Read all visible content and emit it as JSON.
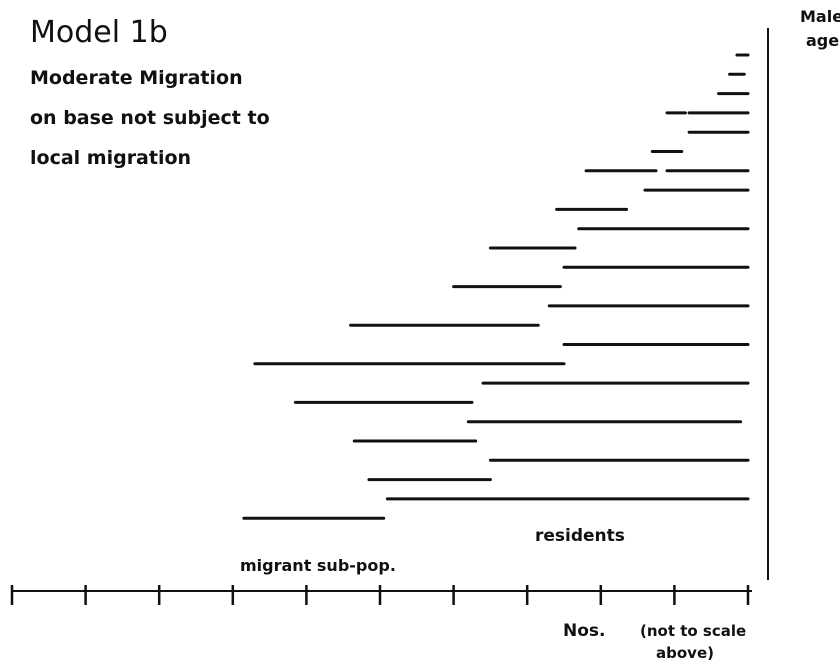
{
  "figure": {
    "title": "Model 1b",
    "subtitle_lines": [
      "Moderate Migration",
      "on base not subject to",
      "local migration"
    ],
    "y_label_lines": [
      "Males",
      "age"
    ],
    "x_label": "Nos.",
    "x_note_lines": [
      "(not to scale",
      "above)"
    ],
    "residents_label": "residents",
    "migrant_label": "migrant sub-pop."
  },
  "chart_data": {
    "type": "bar",
    "title": "Model 1b",
    "subtitle": "Moderate Migration on base not subject to local migration",
    "xlabel": "Nos.",
    "x_note": "(not to scale above)",
    "ylabel": "Males age",
    "x_ticks_count": 11,
    "bar_segments": [
      {
        "row": 1,
        "start": 9.85,
        "end": 10.0
      },
      {
        "row": 2,
        "start": 9.75,
        "end": 9.95
      },
      {
        "row": 3,
        "start": 9.6,
        "end": 10.0
      },
      {
        "row": 4,
        "start": 8.9,
        "end": 9.15
      },
      {
        "row": 4,
        "start": 9.2,
        "end": 10.0
      },
      {
        "row": 5,
        "start": 9.2,
        "end": 10.0
      },
      {
        "row": 6,
        "start": 8.7,
        "end": 9.1
      },
      {
        "row": 7,
        "start": 8.9,
        "end": 10.0
      },
      {
        "row": 7,
        "start": 7.8,
        "end": 8.75
      },
      {
        "row": 8,
        "start": 8.6,
        "end": 10.0
      },
      {
        "row": 9,
        "start": 7.4,
        "end": 8.35
      },
      {
        "row": 10,
        "start": 7.7,
        "end": 10.0
      },
      {
        "row": 11,
        "start": 6.5,
        "end": 7.65
      },
      {
        "row": 12,
        "start": 7.5,
        "end": 10.0
      },
      {
        "row": 13,
        "start": 6.0,
        "end": 7.45
      },
      {
        "row": 14,
        "start": 7.3,
        "end": 10.0
      },
      {
        "row": 15,
        "start": 4.6,
        "end": 7.15
      },
      {
        "row": 16,
        "start": 7.5,
        "end": 10.0
      },
      {
        "row": 17,
        "start": 3.3,
        "end": 7.5
      },
      {
        "row": 18,
        "start": 6.4,
        "end": 10.0
      },
      {
        "row": 19,
        "start": 3.85,
        "end": 6.25
      },
      {
        "row": 20,
        "start": 6.2,
        "end": 9.9
      },
      {
        "row": 21,
        "start": 4.65,
        "end": 6.3
      },
      {
        "row": 22,
        "start": 6.5,
        "end": 10.0
      },
      {
        "row": 23,
        "start": 4.85,
        "end": 6.5
      },
      {
        "row": 24,
        "start": 5.1,
        "end": 10.0
      },
      {
        "row": 25,
        "start": 3.15,
        "end": 5.05
      }
    ]
  }
}
